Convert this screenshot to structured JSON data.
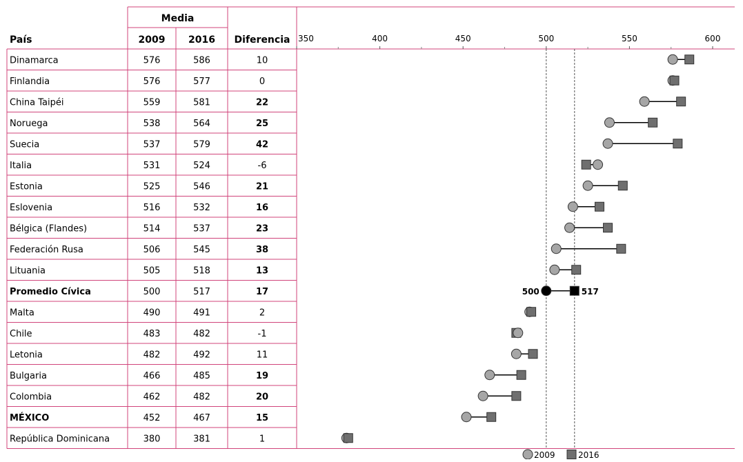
{
  "table": {
    "media_header": "Media",
    "col_country": "País",
    "col_2009": "2009",
    "col_2016": "2016",
    "col_diff": "Diferencia",
    "rows": [
      {
        "country": "Dinamarca",
        "y2009": "576",
        "y2016": "586",
        "diff": "10",
        "bold": false,
        "diff_bold": false
      },
      {
        "country": "Finlandia",
        "y2009": "576",
        "y2016": "577",
        "diff": "0",
        "bold": false,
        "diff_bold": false
      },
      {
        "country": "China Taipéi",
        "y2009": "559",
        "y2016": "581",
        "diff": "22",
        "bold": false,
        "diff_bold": true
      },
      {
        "country": "Noruega",
        "y2009": "538",
        "y2016": "564",
        "diff": "25",
        "bold": false,
        "diff_bold": true
      },
      {
        "country": "Suecia",
        "y2009": "537",
        "y2016": "579",
        "diff": "42",
        "bold": false,
        "diff_bold": true
      },
      {
        "country": "Italia",
        "y2009": "531",
        "y2016": "524",
        "diff": "-6",
        "bold": false,
        "diff_bold": false
      },
      {
        "country": "Estonia",
        "y2009": "525",
        "y2016": "546",
        "diff": "21",
        "bold": false,
        "diff_bold": true
      },
      {
        "country": "Eslovenia",
        "y2009": "516",
        "y2016": "532",
        "diff": "16",
        "bold": false,
        "diff_bold": true
      },
      {
        "country": "Bélgica (Flandes)",
        "y2009": "514",
        "y2016": "537",
        "diff": "23",
        "bold": false,
        "diff_bold": true
      },
      {
        "country": "Federación Rusa",
        "y2009": "506",
        "y2016": "545",
        "diff": "38",
        "bold": false,
        "diff_bold": true
      },
      {
        "country": "Lituania",
        "y2009": "505",
        "y2016": "518",
        "diff": "13",
        "bold": false,
        "diff_bold": true
      },
      {
        "country": "Promedio Cívica",
        "y2009": "500",
        "y2016": "517",
        "diff": "17",
        "bold": true,
        "diff_bold": true
      },
      {
        "country": "Malta",
        "y2009": "490",
        "y2016": "491",
        "diff": "2",
        "bold": false,
        "diff_bold": false
      },
      {
        "country": "Chile",
        "y2009": "483",
        "y2016": "482",
        "diff": "-1",
        "bold": false,
        "diff_bold": false
      },
      {
        "country": "Letonia",
        "y2009": "482",
        "y2016": "492",
        "diff": "11",
        "bold": false,
        "diff_bold": false
      },
      {
        "country": "Bulgaria",
        "y2009": "466",
        "y2016": "485",
        "diff": "19",
        "bold": false,
        "diff_bold": true
      },
      {
        "country": "Colombia",
        "y2009": "462",
        "y2016": "482",
        "diff": "20",
        "bold": false,
        "diff_bold": true
      },
      {
        "country": "MÉXICO",
        "y2009": "452",
        "y2016": "467",
        "diff": "15",
        "bold": true,
        "diff_bold": true
      },
      {
        "country": "República Dominicana",
        "y2009": "380",
        "y2016": "381",
        "diff": "1",
        "bold": false,
        "diff_bold": false
      }
    ]
  },
  "chart_data": {
    "type": "scatter",
    "subtype": "dumbbell",
    "title": "",
    "xlabel": "",
    "ylabel": "",
    "xlim": [
      350,
      620
    ],
    "xticks": [
      350,
      400,
      450,
      500,
      550,
      600
    ],
    "reference_lines": [
      500,
      517
    ],
    "highlight_labels": {
      "left": "500",
      "right": "517"
    },
    "categories": [
      "Dinamarca",
      "Finlandia",
      "China Taipéi",
      "Noruega",
      "Suecia",
      "Italia",
      "Estonia",
      "Eslovenia",
      "Bélgica (Flandes)",
      "Federación Rusa",
      "Lituania",
      "Promedio Cívica",
      "Malta",
      "Chile",
      "Letonia",
      "Bulgaria",
      "Colombia",
      "MÉXICO",
      "República Dominicana"
    ],
    "series": [
      {
        "name": "2009",
        "marker": "circle",
        "color": "#a6a6a6",
        "values": [
          576,
          576,
          559,
          538,
          537,
          531,
          525,
          516,
          514,
          506,
          505,
          500,
          490,
          483,
          482,
          466,
          462,
          452,
          380
        ]
      },
      {
        "name": "2016",
        "marker": "square",
        "color": "#6f6f6f",
        "values": [
          586,
          577,
          581,
          564,
          579,
          524,
          546,
          532,
          537,
          545,
          518,
          517,
          491,
          482,
          492,
          485,
          482,
          467,
          381
        ]
      }
    ],
    "highlight_index": 11,
    "highlight_color": "#000000",
    "legend": {
      "position": "bottom-right",
      "items": [
        "2009",
        "2016"
      ]
    },
    "border_color": "#d0437a"
  }
}
